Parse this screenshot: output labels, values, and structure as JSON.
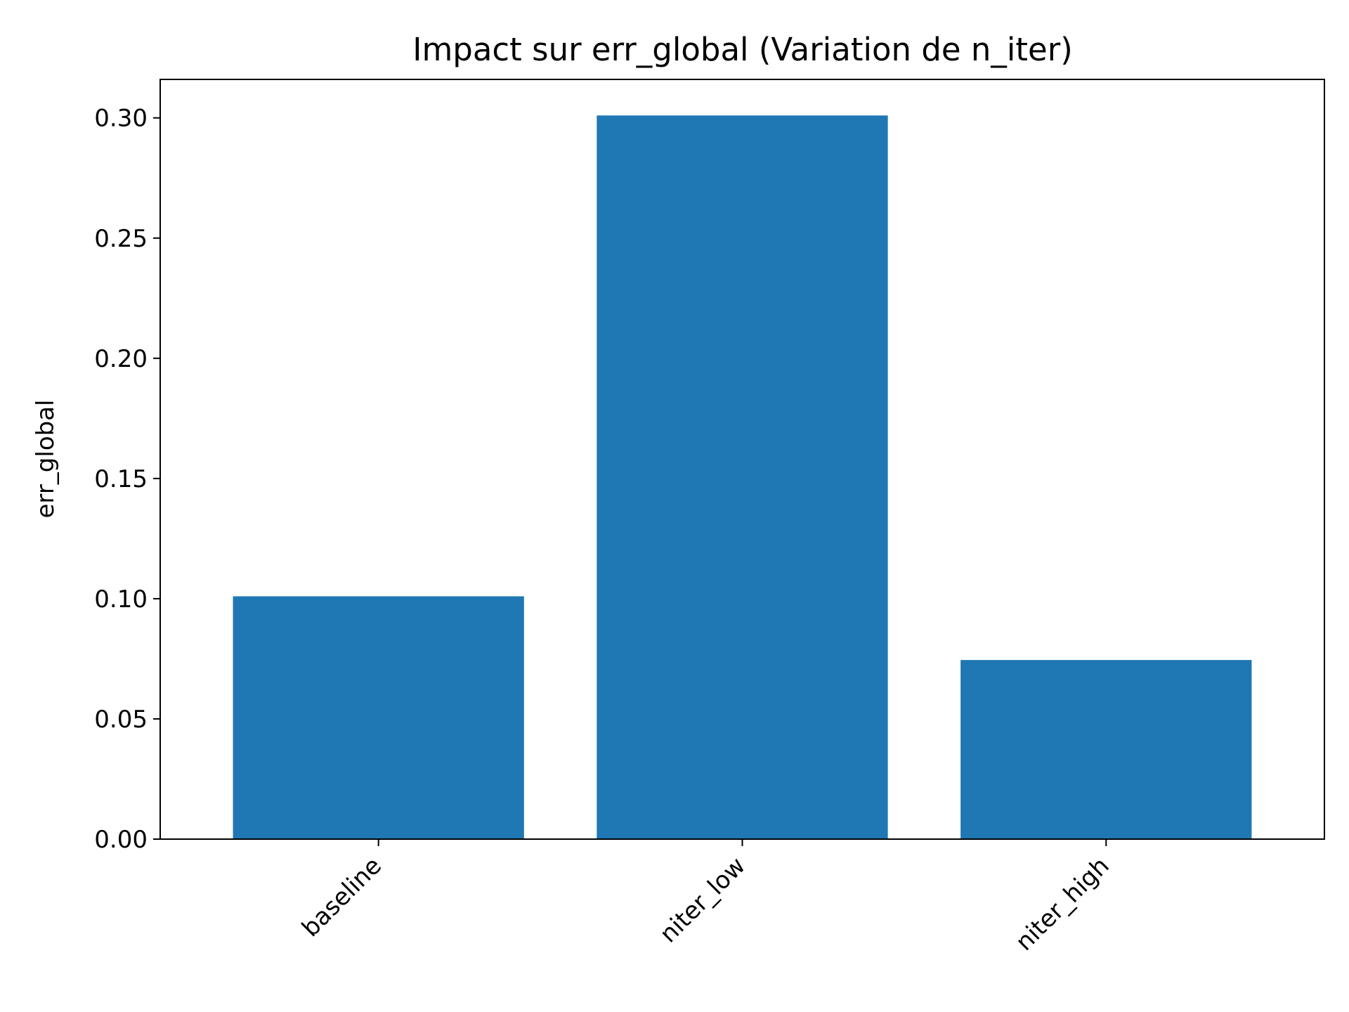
{
  "chart_data": {
    "type": "bar",
    "title": "Impact sur err_global (Variation de n_iter)",
    "xlabel": "",
    "ylabel": "err_global",
    "categories": [
      "baseline",
      "niter_low",
      "niter_high"
    ],
    "values": [
      0.101,
      0.301,
      0.0745
    ],
    "ylim": [
      0,
      0.316
    ],
    "yticks": [
      0.0,
      0.05,
      0.1,
      0.15,
      0.2,
      0.25,
      0.3
    ],
    "ytick_labels": [
      "0.00",
      "0.05",
      "0.10",
      "0.15",
      "0.20",
      "0.25",
      "0.30"
    ],
    "grid": false,
    "legend": "none",
    "bar_color": "#1f77b4",
    "xtick_rotation": -45
  }
}
